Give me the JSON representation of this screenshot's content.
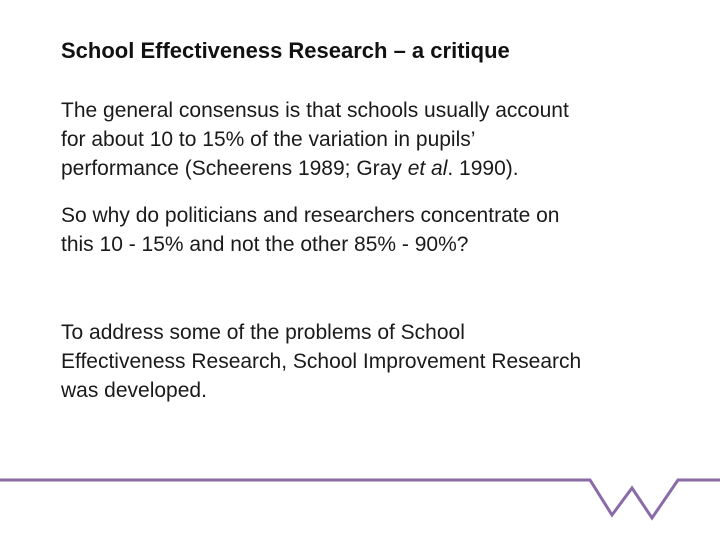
{
  "slide": {
    "title": "School Effectiveness Research – a critique",
    "paragraph_1": {
      "line_1": "The general consensus is that schools usually account",
      "line_2": "for about 10 to 15% of the variation in pupils’",
      "line_3_before_italic": "performance  (Scheerens 1989; Gray ",
      "line_3_italic": "et al",
      "line_3_after_italic": ". 1990)."
    },
    "paragraph_2": {
      "line_1": "So why do politicians and researchers concentrate on",
      "line_2": "this 10 - 15% and not the other 85% - 90%?"
    },
    "paragraph_3": {
      "line_1": "To address some of the problems of School",
      "line_2": "Effectiveness Research, School Improvement Research",
      "line_3": "was developed."
    }
  },
  "colors": {
    "accent": "#8a6ba8",
    "text": "#1a1a1a",
    "background": "#ffffff"
  },
  "icons": {
    "footer_mark": "w-logo-mark"
  }
}
